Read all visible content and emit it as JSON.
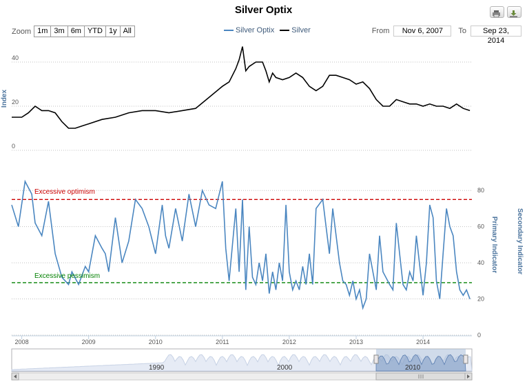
{
  "title": "Silver Optix",
  "toolbar": {
    "zoom_label": "Zoom",
    "zoom_buttons": [
      "1m",
      "3m",
      "6m",
      "YTD",
      "1y",
      "All"
    ],
    "from_label": "From",
    "from_value": "Nov 6, 2007",
    "to_label": "To",
    "to_value": "Sep 23, 2014",
    "print_icon": "print-icon",
    "download_icon": "download-icon"
  },
  "legend": {
    "items": [
      {
        "label": "Silver Optix",
        "color": "#4a86c0"
      },
      {
        "label": "Silver",
        "color": "#000000"
      }
    ]
  },
  "colors": {
    "optix": "#4a86c0",
    "silver": "#000000",
    "optimism": "#cc0000",
    "pessimism": "#008000",
    "navigator_fill": "#e6ebf5",
    "navigator_selected": "#a9bdd8"
  },
  "annotations": {
    "optimism": "Excessive optimism",
    "pessimism": "Excessive pessimism"
  },
  "navigator_labels": [
    "1990",
    "2000",
    "2010"
  ],
  "chart_data": [
    {
      "type": "line",
      "title": "Silver Optix",
      "ylabel": "Index",
      "ylim": [
        0,
        50
      ],
      "yticks": [
        "0",
        "20",
        "40"
      ],
      "series": [
        {
          "name": "Silver",
          "x": [
            2007.85,
            2008.0,
            2008.1,
            2008.2,
            2008.3,
            2008.4,
            2008.5,
            2008.6,
            2008.7,
            2008.8,
            2008.9,
            2009.0,
            2009.2,
            2009.4,
            2009.6,
            2009.8,
            2010.0,
            2010.2,
            2010.4,
            2010.6,
            2010.8,
            2011.0,
            2011.1,
            2011.2,
            2011.25,
            2011.3,
            2011.35,
            2011.4,
            2011.5,
            2011.6,
            2011.65,
            2011.7,
            2011.75,
            2011.8,
            2011.9,
            2012.0,
            2012.1,
            2012.2,
            2012.3,
            2012.4,
            2012.5,
            2012.6,
            2012.7,
            2012.8,
            2012.9,
            2013.0,
            2013.1,
            2013.2,
            2013.3,
            2013.4,
            2013.5,
            2013.6,
            2013.7,
            2013.8,
            2013.9,
            2014.0,
            2014.1,
            2014.2,
            2014.3,
            2014.4,
            2014.5,
            2014.6,
            2014.7
          ],
          "values": [
            15,
            15,
            17,
            20,
            18,
            18,
            17,
            13,
            10,
            10,
            11,
            12,
            14,
            15,
            17,
            18,
            18,
            17,
            18,
            19,
            24,
            29,
            31,
            37,
            41,
            47,
            36,
            38,
            40,
            40,
            36,
            31,
            35,
            33,
            32,
            33,
            35,
            33,
            29,
            27,
            29,
            34,
            34,
            33,
            32,
            30,
            31,
            28,
            23,
            20,
            20,
            23,
            22,
            21,
            21,
            20,
            21,
            20,
            20,
            19,
            21,
            19,
            18
          ]
        }
      ]
    },
    {
      "type": "line",
      "xlabel": "",
      "ylabel": "Primary Indicator",
      "ylabel2": "Secondary Indicator",
      "ylim": [
        0,
        90
      ],
      "yticks": [
        "0",
        "20",
        "40",
        "60",
        "80"
      ],
      "xticks": [
        "2008",
        "2009",
        "2010",
        "2011",
        "2012",
        "2013",
        "2014"
      ],
      "reference_lines": [
        {
          "label": "Excessive optimism",
          "value": 75
        },
        {
          "label": "Excessive pessimism",
          "value": 29
        }
      ],
      "series": [
        {
          "name": "Silver Optix",
          "x": [
            2007.85,
            2007.95,
            2008.05,
            2008.15,
            2008.2,
            2008.3,
            2008.4,
            2008.5,
            2008.6,
            2008.7,
            2008.75,
            2008.85,
            2008.95,
            2009.0,
            2009.1,
            2009.2,
            2009.25,
            2009.3,
            2009.4,
            2009.5,
            2009.6,
            2009.7,
            2009.8,
            2009.9,
            2010.0,
            2010.1,
            2010.15,
            2010.2,
            2010.3,
            2010.4,
            2010.5,
            2010.6,
            2010.7,
            2010.8,
            2010.9,
            2011.0,
            2011.05,
            2011.1,
            2011.2,
            2011.25,
            2011.3,
            2011.35,
            2011.4,
            2011.45,
            2011.5,
            2011.55,
            2011.6,
            2011.65,
            2011.7,
            2011.75,
            2011.8,
            2011.85,
            2011.9,
            2011.95,
            2012.0,
            2012.05,
            2012.1,
            2012.15,
            2012.2,
            2012.25,
            2012.3,
            2012.35,
            2012.4,
            2012.5,
            2012.55,
            2012.6,
            2012.65,
            2012.7,
            2012.75,
            2012.8,
            2012.85,
            2012.9,
            2012.95,
            2013.0,
            2013.05,
            2013.1,
            2013.15,
            2013.2,
            2013.3,
            2013.35,
            2013.4,
            2013.5,
            2013.55,
            2013.6,
            2013.65,
            2013.7,
            2013.75,
            2013.8,
            2013.85,
            2013.9,
            2014.0,
            2014.05,
            2014.1,
            2014.15,
            2014.2,
            2014.25,
            2014.3,
            2014.35,
            2014.4,
            2014.45,
            2014.5,
            2014.55,
            2014.6,
            2014.65,
            2014.7
          ],
          "values": [
            72,
            60,
            85,
            78,
            62,
            55,
            74,
            45,
            32,
            28,
            35,
            28,
            38,
            35,
            55,
            48,
            45,
            35,
            65,
            40,
            52,
            75,
            70,
            60,
            45,
            72,
            55,
            48,
            70,
            52,
            78,
            60,
            80,
            72,
            70,
            85,
            48,
            30,
            70,
            35,
            75,
            25,
            60,
            32,
            28,
            40,
            30,
            45,
            23,
            35,
            25,
            40,
            30,
            72,
            35,
            25,
            30,
            25,
            38,
            28,
            45,
            28,
            70,
            75,
            60,
            45,
            70,
            55,
            40,
            30,
            28,
            22,
            30,
            20,
            25,
            15,
            20,
            45,
            25,
            55,
            35,
            28,
            25,
            62,
            45,
            28,
            25,
            35,
            30,
            55,
            22,
            40,
            72,
            65,
            30,
            20,
            45,
            70,
            60,
            55,
            35,
            25,
            22,
            25,
            20
          ]
        }
      ]
    }
  ]
}
